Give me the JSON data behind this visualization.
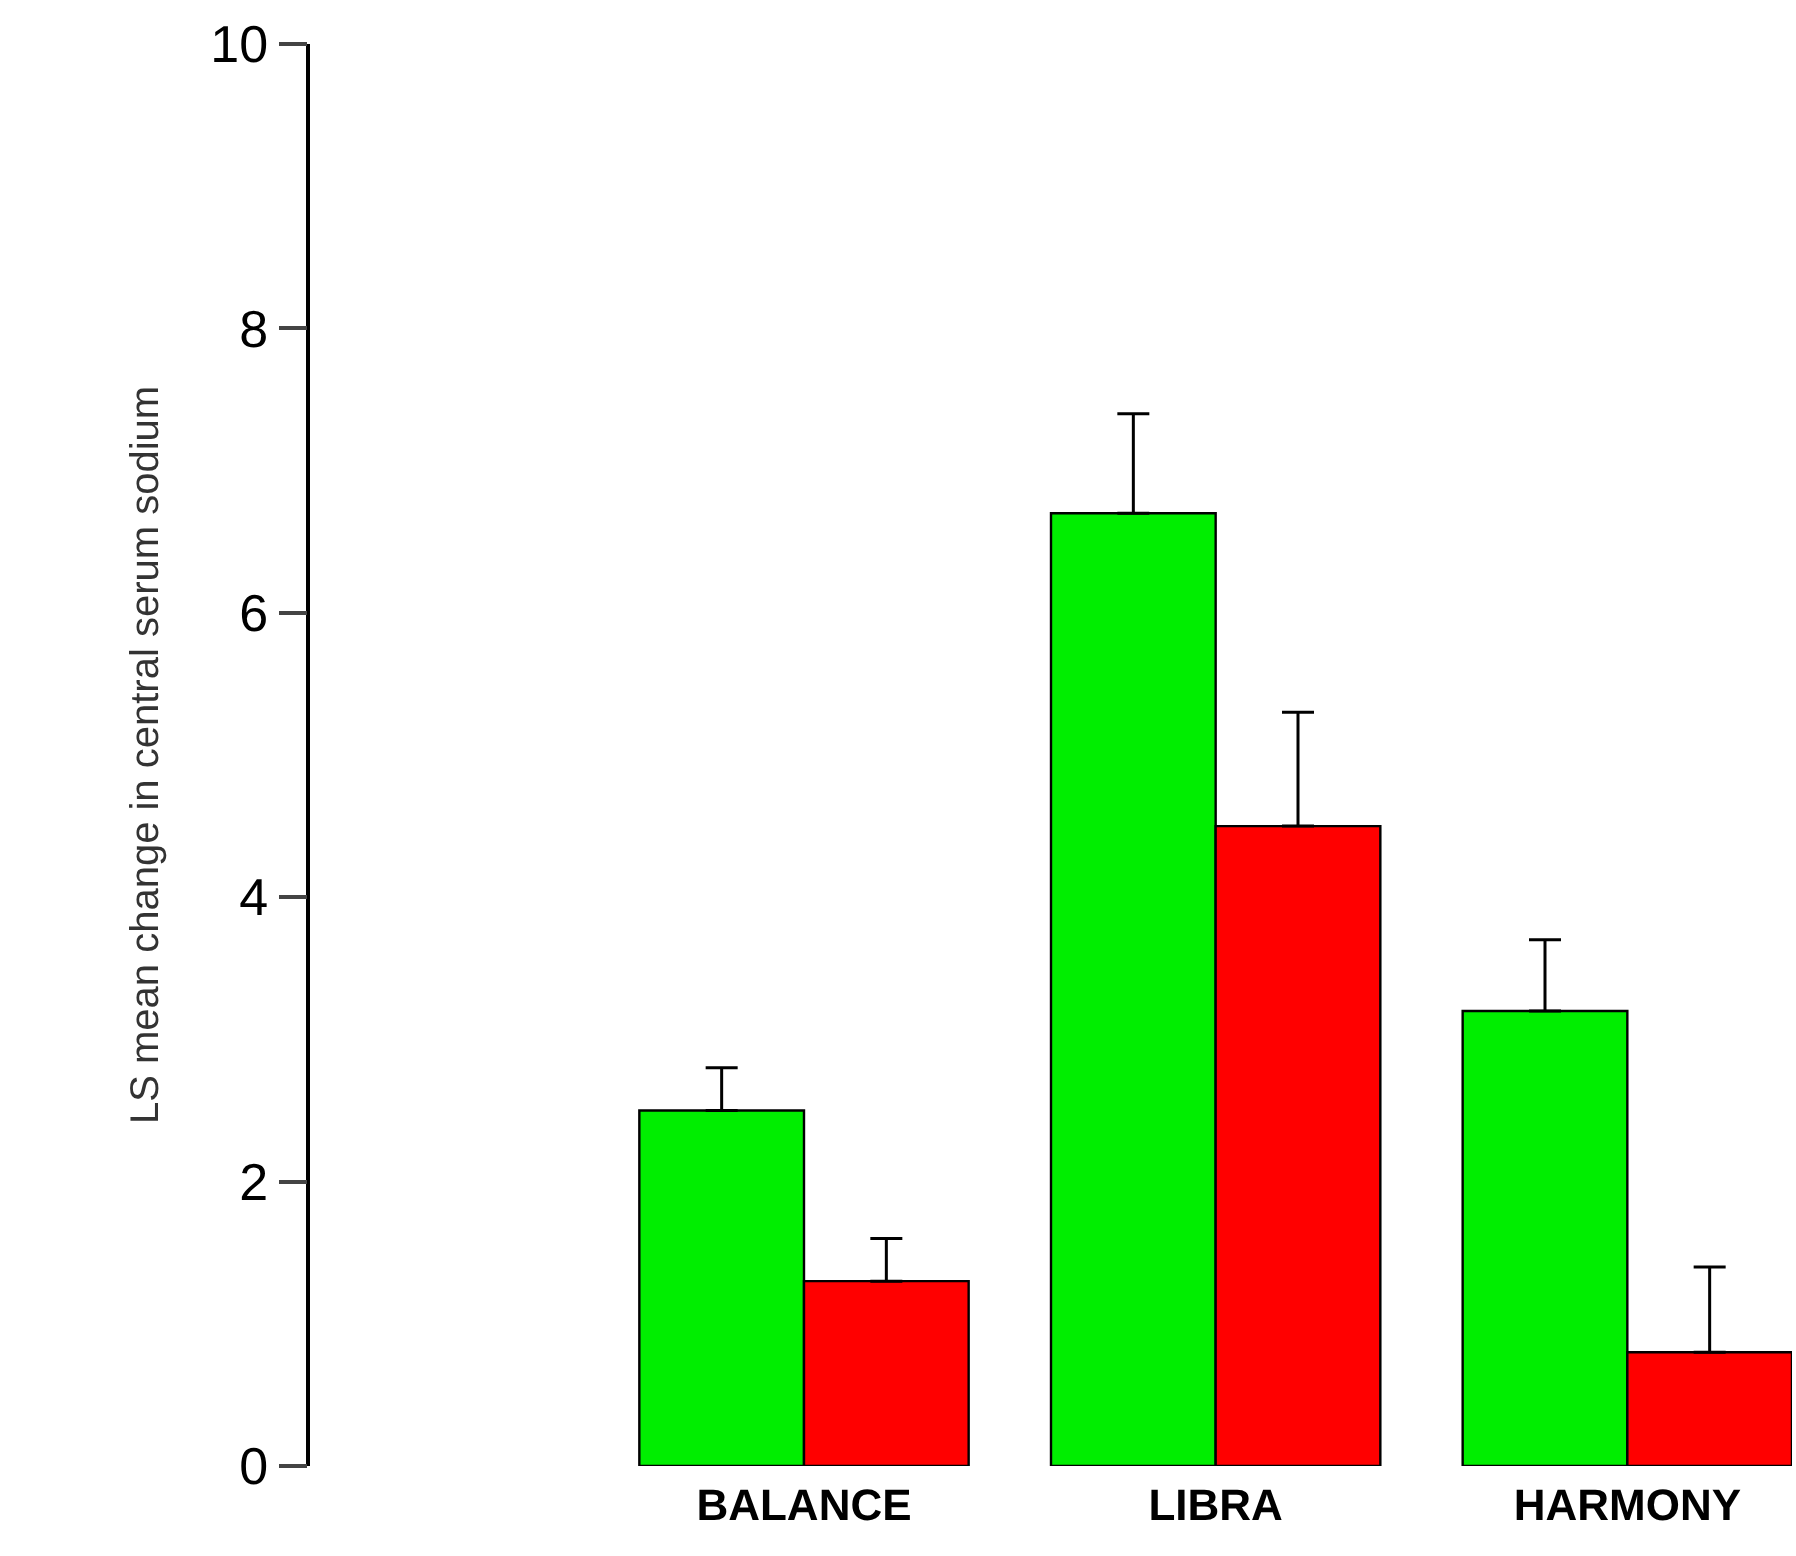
{
  "chart_data": {
    "type": "bar",
    "ylabel": "LS mean change in central serum sodium",
    "categories": [
      "BALANCE",
      "LIBRA",
      "HARMONY"
    ],
    "series": [
      {
        "color": "#00ee00",
        "values": [
          2.5,
          6.7,
          3.2
        ],
        "errors": [
          [
            2.5,
            2.8
          ],
          [
            6.7,
            7.4
          ],
          [
            3.2,
            3.7
          ]
        ]
      },
      {
        "color": "#ff0000",
        "values": [
          1.3,
          4.5,
          0.8
        ],
        "errors": [
          [
            1.3,
            1.6
          ],
          [
            4.5,
            5.3
          ],
          [
            0.8,
            1.4
          ]
        ]
      }
    ],
    "ylim": [
      0,
      10
    ],
    "yticks": [
      0,
      2,
      4,
      6,
      8,
      10
    ]
  }
}
